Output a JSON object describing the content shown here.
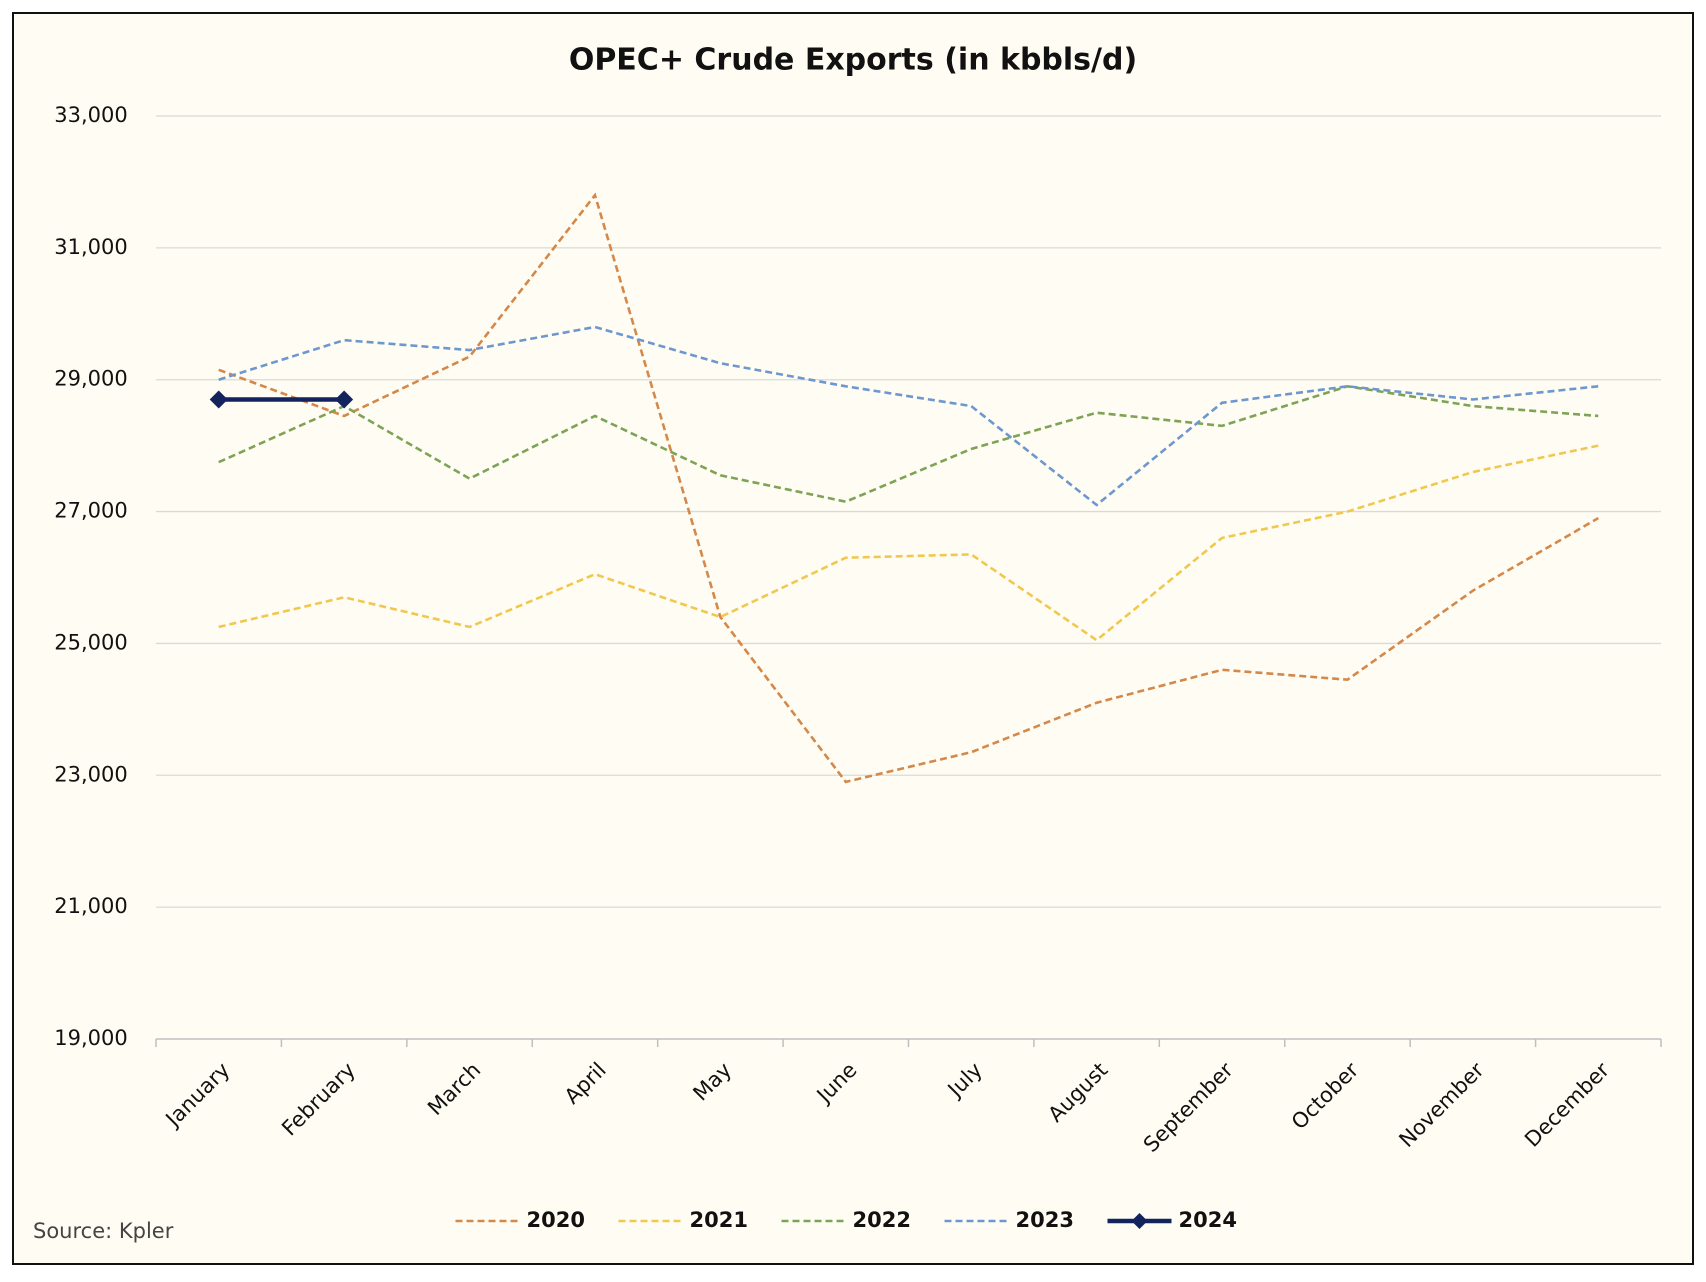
{
  "chart_data": {
    "type": "line",
    "title": "OPEC+ Crude Exports (in kbbls/d)",
    "source": "Source: Kpler",
    "categories": [
      "January",
      "February",
      "March",
      "April",
      "May",
      "June",
      "July",
      "August",
      "September",
      "October",
      "November",
      "December"
    ],
    "ylim": [
      19000,
      33000
    ],
    "yticks": [
      {
        "value": 19000,
        "label": "19,000"
      },
      {
        "value": 21000,
        "label": "21,000"
      },
      {
        "value": 23000,
        "label": "23,000"
      },
      {
        "value": 25000,
        "label": "25,000"
      },
      {
        "value": 27000,
        "label": "27,000"
      },
      {
        "value": 29000,
        "label": "29,000"
      },
      {
        "value": 31000,
        "label": "31,000"
      },
      {
        "value": 33000,
        "label": "33,000"
      }
    ],
    "grid": true,
    "legend": "bottom",
    "series": [
      {
        "name": "2020",
        "color": "#d4884a",
        "dashed": true,
        "values": [
          29150,
          28450,
          29350,
          31800,
          25400,
          22900,
          23350,
          24100,
          24600,
          24450,
          25800,
          26900
        ]
      },
      {
        "name": "2021",
        "color": "#f0c850",
        "dashed": true,
        "values": [
          25250,
          25700,
          25250,
          26050,
          25400,
          26300,
          26350,
          25050,
          26600,
          27000,
          27600,
          28000
        ]
      },
      {
        "name": "2022",
        "color": "#7ea356",
        "dashed": true,
        "values": [
          27750,
          28600,
          27500,
          28450,
          27550,
          27150,
          27950,
          28500,
          28300,
          28900,
          28600,
          28450
        ]
      },
      {
        "name": "2023",
        "color": "#6d97cf",
        "dashed": true,
        "values": [
          29000,
          29600,
          29450,
          29800,
          29250,
          28900,
          28600,
          27100,
          28650,
          28900,
          28700,
          28900
        ]
      },
      {
        "name": "2024",
        "color": "#12235e",
        "dashed": false,
        "marker": "diamond",
        "values": [
          28700,
          28700,
          null,
          null,
          null,
          null,
          null,
          null,
          null,
          null,
          null,
          null
        ]
      }
    ]
  }
}
